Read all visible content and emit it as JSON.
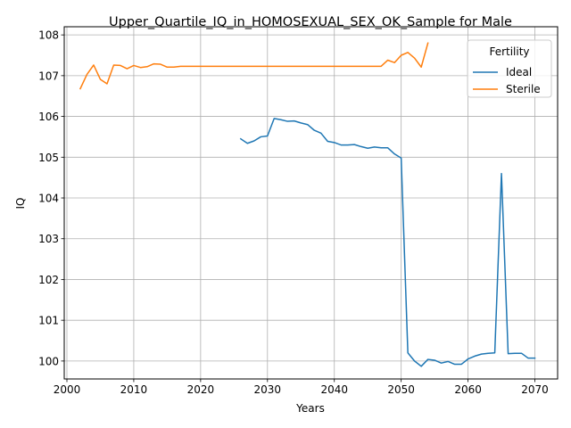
{
  "chart_data": {
    "type": "line",
    "title": "Upper_Quartile_IQ_in_HOMOSEXUAL_SEX_OK_Sample for Male",
    "xlabel": "Years",
    "ylabel": "IQ",
    "xlim": [
      1999.6,
      2073.4
    ],
    "ylim": [
      99.56,
      108.2
    ],
    "xticks": [
      2000,
      2010,
      2020,
      2030,
      2040,
      2050,
      2060,
      2070
    ],
    "yticks": [
      100,
      101,
      102,
      103,
      104,
      105,
      106,
      107,
      108
    ],
    "grid": true,
    "legend": {
      "title": "Fertility",
      "placement": "top-right"
    },
    "series": [
      {
        "name": "Ideal",
        "color": "#1f77b4",
        "x": [
          2026,
          2027,
          2028,
          2029,
          2030,
          2031,
          2032,
          2033,
          2034,
          2035,
          2036,
          2037,
          2038,
          2039,
          2040,
          2041,
          2042,
          2043,
          2044,
          2045,
          2046,
          2047,
          2048,
          2049,
          2050,
          2051,
          2052,
          2053,
          2054,
          2055,
          2056,
          2057,
          2058,
          2059,
          2060,
          2061,
          2062,
          2063,
          2064,
          2065,
          2066,
          2067,
          2068,
          2069,
          2070
        ],
        "y": [
          105.45,
          105.34,
          105.4,
          105.5,
          105.52,
          105.95,
          105.92,
          105.88,
          105.89,
          105.84,
          105.8,
          105.66,
          105.59,
          105.39,
          105.36,
          105.3,
          105.3,
          105.31,
          105.26,
          105.22,
          105.25,
          105.23,
          105.23,
          105.08,
          104.98,
          100.2,
          100.0,
          99.87,
          100.04,
          100.02,
          99.95,
          99.99,
          99.92,
          99.92,
          100.05,
          100.12,
          100.17,
          100.19,
          100.2,
          104.6,
          100.18,
          100.19,
          100.19,
          100.07,
          100.07
        ]
      },
      {
        "name": "Sterile",
        "color": "#ff7f0e",
        "x": [
          2002,
          2003,
          2004,
          2005,
          2006,
          2007,
          2008,
          2009,
          2010,
          2011,
          2012,
          2013,
          2014,
          2015,
          2016,
          2017,
          2018,
          2019,
          2020,
          2021,
          2022,
          2023,
          2024,
          2025,
          2026,
          2027,
          2028,
          2029,
          2030,
          2031,
          2032,
          2033,
          2034,
          2035,
          2036,
          2037,
          2038,
          2039,
          2040,
          2041,
          2042,
          2043,
          2044,
          2045,
          2046,
          2047,
          2048,
          2049,
          2050,
          2051,
          2052,
          2053,
          2054
        ],
        "y": [
          106.68,
          107.03,
          107.26,
          106.91,
          106.8,
          107.26,
          107.25,
          107.17,
          107.25,
          107.2,
          107.22,
          107.29,
          107.28,
          107.21,
          107.21,
          107.23,
          107.23,
          107.23,
          107.23,
          107.23,
          107.23,
          107.23,
          107.23,
          107.23,
          107.23,
          107.23,
          107.23,
          107.23,
          107.23,
          107.23,
          107.23,
          107.23,
          107.23,
          107.23,
          107.23,
          107.23,
          107.23,
          107.23,
          107.23,
          107.23,
          107.23,
          107.23,
          107.23,
          107.23,
          107.23,
          107.23,
          107.38,
          107.32,
          107.5,
          107.57,
          107.43,
          107.21,
          107.8
        ]
      }
    ]
  }
}
